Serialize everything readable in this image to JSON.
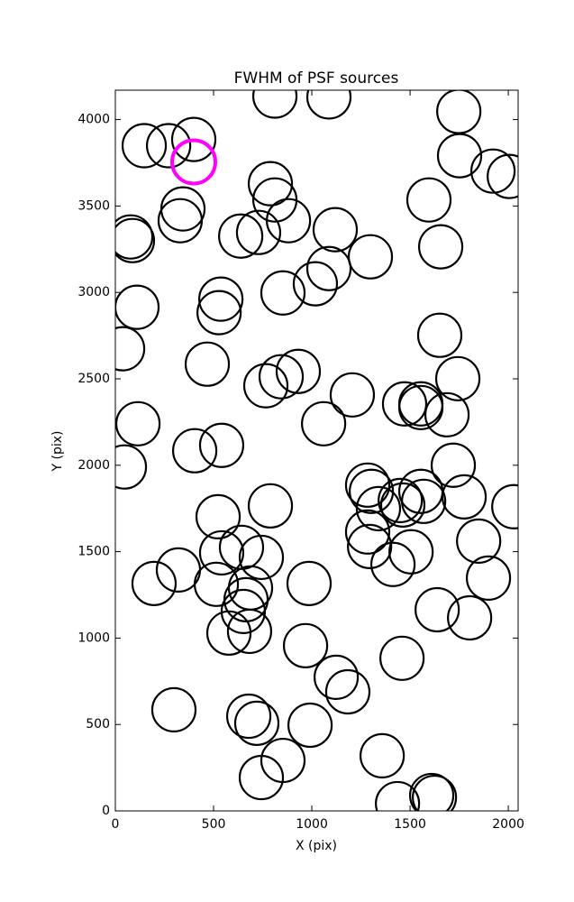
{
  "chart_data": {
    "type": "scatter",
    "title": "FWHM of PSF sources",
    "xlabel": "X (pix)",
    "ylabel": "Y (pix)",
    "xlim": [
      0,
      2050
    ],
    "ylim": [
      0,
      4170
    ],
    "xticks": [
      0,
      500,
      1000,
      1500,
      2000
    ],
    "yticks": [
      0,
      500,
      1000,
      1500,
      2000,
      2500,
      3000,
      3500,
      4000
    ],
    "series": [
      {
        "color": "#000000",
        "x": [
          147,
          271,
          399,
          344,
          330,
          78,
          87,
          812,
          1087,
          1748,
          1752,
          1922,
          2005,
          789,
          812,
          881,
          729,
          638,
          1119,
          1298,
          1596,
          1656,
          1087,
          1018,
          853,
          537,
          528,
          110,
          37,
          468,
          766,
          844,
          931,
          1206,
          1060,
          1472,
          1555,
          1555,
          1688,
          1743,
          1651,
          115,
          46,
          404,
          541,
          523,
          789,
          1284,
          1303,
          1339,
          1450,
          1463,
          1555,
          1569,
          1720,
          1775,
          2028,
          1284,
          1294,
          1413,
          1505,
          1849,
          1899,
          642,
          743,
          541,
          514,
          321,
          197,
          688,
          665,
          651,
          683,
          578,
          986,
          1638,
          1803,
          1459,
          968,
          1124,
          1183,
          298,
          679,
          720,
          991,
          853,
          743,
          1358,
          1436,
          1610,
          1624
        ],
        "values": [
          3849,
          3849,
          3885,
          3483,
          3415,
          3321,
          3300,
          4136,
          4131,
          4047,
          3791,
          3702,
          3671,
          3629,
          3535,
          3415,
          3347,
          3326,
          3363,
          3206,
          3535,
          3264,
          3138,
          3050,
          2997,
          2961,
          2883,
          2914,
          2674,
          2585,
          2460,
          2512,
          2543,
          2407,
          2240,
          2355,
          2355,
          2334,
          2292,
          2501,
          2752,
          2240,
          1990,
          2084,
          2115,
          1702,
          1765,
          1885,
          1849,
          1749,
          1796,
          1770,
          1849,
          1791,
          2000,
          1817,
          1760,
          1614,
          1530,
          1426,
          1499,
          1561,
          1347,
          1525,
          1467,
          1493,
          1311,
          1394,
          1316,
          1290,
          1222,
          1154,
          1039,
          1029,
          1316,
          1164,
          1117,
          883,
          956,
          773,
          689,
          585,
          548,
          507,
          496,
          292,
          193,
          319,
          42,
          89,
          78
        ]
      },
      {
        "color": "#ff00ff",
        "x": [
          399
        ],
        "values": [
          3755
        ]
      }
    ]
  }
}
